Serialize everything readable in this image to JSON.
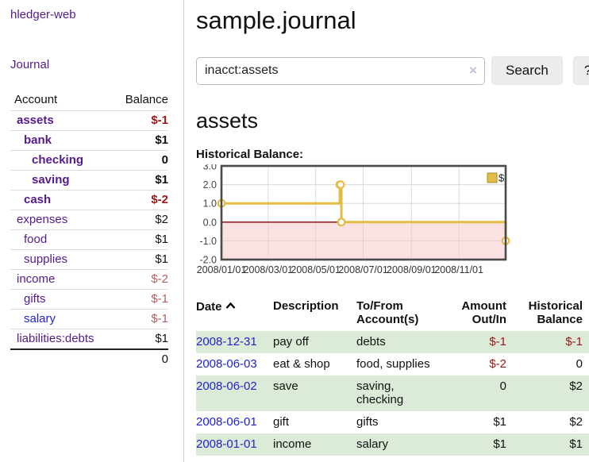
{
  "app": {
    "title": "hledger-web",
    "nav": {
      "journal_label": "Journal"
    }
  },
  "sidebar": {
    "header": {
      "account": "Account",
      "balance": "Balance"
    },
    "accounts": [
      {
        "name": "assets",
        "level": 1,
        "balance": "$-1",
        "bold": true,
        "negative": true,
        "unvisited": false
      },
      {
        "name": "bank",
        "level": 2,
        "balance": "$1",
        "bold": true,
        "negative": false,
        "unvisited": false
      },
      {
        "name": "checking",
        "level": 3,
        "balance": "0",
        "bold": true,
        "negative": false,
        "unvisited": false
      },
      {
        "name": "saving",
        "level": 3,
        "balance": "$1",
        "bold": true,
        "negative": false,
        "unvisited": false
      },
      {
        "name": "cash",
        "level": 2,
        "balance": "$-2",
        "bold": true,
        "negative": true,
        "unvisited": false
      },
      {
        "name": "expenses",
        "level": 1,
        "balance": "$2",
        "bold": false,
        "negative": false,
        "unvisited": false
      },
      {
        "name": "food",
        "level": 2,
        "balance": "$1",
        "bold": false,
        "negative": false,
        "unvisited": false
      },
      {
        "name": "supplies",
        "level": 2,
        "balance": "$1",
        "bold": false,
        "negative": false,
        "unvisited": false
      },
      {
        "name": "income",
        "level": 1,
        "balance": "$-2",
        "bold": false,
        "negative": true,
        "unvisited": false
      },
      {
        "name": "gifts",
        "level": 2,
        "balance": "$-1",
        "bold": false,
        "negative": true,
        "unvisited": false
      },
      {
        "name": "salary",
        "level": 2,
        "balance": "$-1",
        "bold": false,
        "negative": true,
        "unvisited": true
      },
      {
        "name": "liabilities:debts",
        "level": 1,
        "balance": "$1",
        "bold": false,
        "negative": false,
        "unvisited": false
      }
    ],
    "total": "0"
  },
  "header": {
    "title": "sample.journal"
  },
  "search": {
    "value": "inacct:assets",
    "clear_icon": "×",
    "button_label": "Search",
    "help_label": "?"
  },
  "account_page": {
    "heading": "assets",
    "chart_label": "Historical Balance:"
  },
  "chart_data": {
    "type": "line",
    "title": "Historical Balance:",
    "step": true,
    "ylim": [
      -2,
      3
    ],
    "yticks": [
      "3.0",
      "2.0",
      "1.0",
      "0.0",
      "-1.0",
      "-2.0"
    ],
    "xticks": [
      "2008/01/01",
      "2008/03/01",
      "2008/05/01",
      "2008/07/01",
      "2008/09/01",
      "2008/11/01"
    ],
    "x_range": [
      "2008/01/01",
      "2008/12/31"
    ],
    "grid": true,
    "legend": {
      "label": "$",
      "position": "top-right"
    },
    "series": [
      {
        "name": "$",
        "color": "#e4bb43",
        "points": [
          [
            "2008-01-01",
            1
          ],
          [
            "2008-06-01",
            2
          ],
          [
            "2008-06-02",
            2
          ],
          [
            "2008-06-03",
            0
          ],
          [
            "2008-12-31",
            -1
          ]
        ]
      }
    ],
    "negative_region_fill": "#f5c6c6",
    "zero_line_color": "#8b0000",
    "border_color": "#4a4a4a",
    "gridline_color": "#d9d9d9"
  },
  "register": {
    "columns": [
      "Date",
      "Description",
      "To/From Account(s)",
      "Amount Out/In",
      "Historical Balance"
    ],
    "rows": [
      {
        "date": "2008-12-31",
        "description": "pay off",
        "accounts": "debts",
        "amount": "$-1",
        "balance": "$-1",
        "amount_negative": true,
        "balance_negative": true
      },
      {
        "date": "2008-06-03",
        "description": "eat & shop",
        "accounts": "food, supplies",
        "amount": "$-2",
        "balance": "0",
        "amount_negative": true,
        "balance_negative": false
      },
      {
        "date": "2008-06-02",
        "description": "save",
        "accounts": "saving, checking",
        "amount": "0",
        "balance": "$2",
        "amount_negative": false,
        "balance_negative": false
      },
      {
        "date": "2008-06-01",
        "description": "gift",
        "accounts": "gifts",
        "amount": "$1",
        "balance": "$2",
        "amount_negative": false,
        "balance_negative": false
      },
      {
        "date": "2008-01-01",
        "description": "income",
        "accounts": "salary",
        "amount": "$1",
        "balance": "$1",
        "amount_negative": false,
        "balance_negative": false
      }
    ]
  },
  "colors": {
    "link_visited": "#551a8b",
    "link_unvisited": "#2222cc",
    "negative_bold": "#9c1616",
    "negative_soft": "#b25f5f",
    "row_highlight": "#dcebd8",
    "series_gold": "#e4bb43"
  }
}
